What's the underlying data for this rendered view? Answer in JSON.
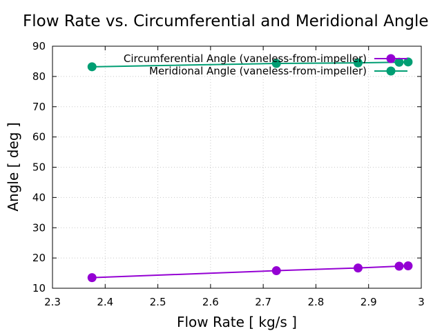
{
  "chart_data": {
    "type": "line",
    "title": "Flow Rate vs. Circumferential and Meridional Angle",
    "xlabel": "Flow Rate [ kg/s ]",
    "ylabel": "Angle [ deg ]",
    "xlim": [
      2.3,
      3.0
    ],
    "ylim": [
      10,
      90
    ],
    "xticks": [
      "2.3",
      "2.4",
      "2.5",
      "2.6",
      "2.7",
      "2.8",
      "2.9",
      "3"
    ],
    "yticks": [
      "10",
      "20",
      "30",
      "40",
      "50",
      "60",
      "70",
      "80",
      "90"
    ],
    "grid": true,
    "legend_position": "top-right",
    "series": [
      {
        "name": "Circumferential Angle (vaneless-from-impeller)",
        "color": "#9400d3",
        "x": [
          2.375,
          2.725,
          2.88,
          2.958,
          2.975
        ],
        "y": [
          13.5,
          15.8,
          16.7,
          17.3,
          17.4
        ]
      },
      {
        "name": "Meridional Angle (vaneless-from-impeller)",
        "color": "#009e73",
        "x": [
          2.375,
          2.725,
          2.88,
          2.958,
          2.975
        ],
        "y": [
          83.2,
          84.3,
          84.5,
          84.7,
          84.8
        ]
      }
    ]
  }
}
